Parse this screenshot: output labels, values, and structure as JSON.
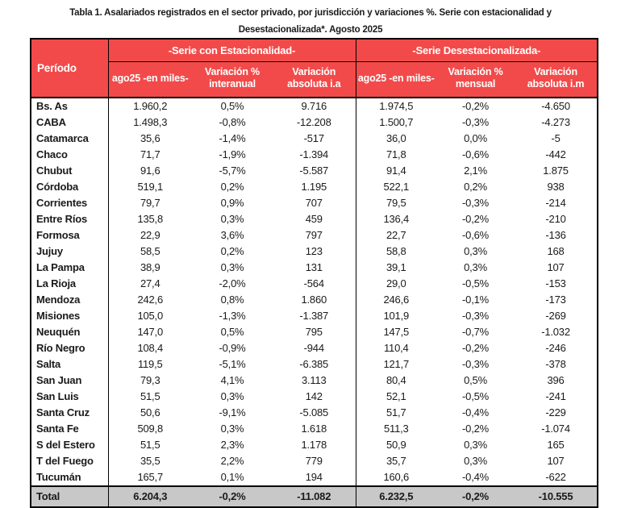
{
  "title": {
    "line1": "Tabla 1. Asalariados registrados en el sector privado, por jurisdicción y variaciones %. Serie con estacionalidad y",
    "line2": "Desestacionalizada*. Agosto 2025"
  },
  "colors": {
    "header_red": "#f24a4a",
    "header_text": "#ffffff",
    "total_gray": "#c8c8c8",
    "border_black": "#000000"
  },
  "table": {
    "period_header": "Período",
    "group_headers": {
      "seasonal": "-Serie con Estacionalidad-",
      "deseasonalized": "-Serie Desestacionalizada-"
    },
    "subheaders": [
      "ago25 -en miles-",
      "Variación % interanual",
      "Variación absoluta i.a",
      "ago25 -en miles-",
      "Variación % mensual",
      "Variación absoluta i.m"
    ],
    "rows": [
      [
        "Bs. As",
        "1.960,2",
        "0,5%",
        "9.716",
        "1.974,5",
        "-0,2%",
        "-4.650"
      ],
      [
        "CABA",
        "1.498,3",
        "-0,8%",
        "-12.208",
        "1.500,7",
        "-0,3%",
        "-4.273"
      ],
      [
        "Catamarca",
        "35,6",
        "-1,4%",
        "-517",
        "36,0",
        "0,0%",
        "-5"
      ],
      [
        "Chaco",
        "71,7",
        "-1,9%",
        "-1.394",
        "71,8",
        "-0,6%",
        "-442"
      ],
      [
        "Chubut",
        "91,6",
        "-5,7%",
        "-5.587",
        "91,4",
        "2,1%",
        "1.875"
      ],
      [
        "Córdoba",
        "519,1",
        "0,2%",
        "1.195",
        "522,1",
        "0,2%",
        "938"
      ],
      [
        "Corrientes",
        "79,7",
        "0,9%",
        "707",
        "79,5",
        "-0,3%",
        "-214"
      ],
      [
        "Entre Ríos",
        "135,8",
        "0,3%",
        "459",
        "136,4",
        "-0,2%",
        "-210"
      ],
      [
        "Formosa",
        "22,9",
        "3,6%",
        "797",
        "22,7",
        "-0,6%",
        "-136"
      ],
      [
        "Jujuy",
        "58,5",
        "0,2%",
        "123",
        "58,8",
        "0,3%",
        "168"
      ],
      [
        "La Pampa",
        "38,9",
        "0,3%",
        "131",
        "39,1",
        "0,3%",
        "107"
      ],
      [
        "La Rioja",
        "27,4",
        "-2,0%",
        "-564",
        "29,0",
        "-0,5%",
        "-153"
      ],
      [
        "Mendoza",
        "242,6",
        "0,8%",
        "1.860",
        "246,6",
        "-0,1%",
        "-173"
      ],
      [
        "Misiones",
        "105,0",
        "-1,3%",
        "-1.387",
        "101,9",
        "-0,3%",
        "-269"
      ],
      [
        "Neuquén",
        "147,0",
        "0,5%",
        "795",
        "147,5",
        "-0,7%",
        "-1.032"
      ],
      [
        "Río Negro",
        "108,4",
        "-0,9%",
        "-944",
        "110,4",
        "-0,2%",
        "-246"
      ],
      [
        "Salta",
        "119,5",
        "-5,1%",
        "-6.385",
        "121,7",
        "-0,3%",
        "-378"
      ],
      [
        "San Juan",
        "79,3",
        "4,1%",
        "3.113",
        "80,4",
        "0,5%",
        "396"
      ],
      [
        "San Luis",
        "51,5",
        "0,3%",
        "142",
        "52,1",
        "-0,5%",
        "-241"
      ],
      [
        "Santa Cruz",
        "50,6",
        "-9,1%",
        "-5.085",
        "51,7",
        "-0,4%",
        "-229"
      ],
      [
        "Santa Fe",
        "509,8",
        "0,3%",
        "1.618",
        "511,3",
        "-0,2%",
        "-1.074"
      ],
      [
        "S del Estero",
        "51,5",
        "2,3%",
        "1.178",
        "50,9",
        "0,3%",
        "165"
      ],
      [
        "T del Fuego",
        "35,5",
        "2,2%",
        "779",
        "35,7",
        "0,3%",
        "107"
      ],
      [
        "Tucumán",
        "165,7",
        "0,1%",
        "194",
        "160,6",
        "-0,4%",
        "-622"
      ]
    ],
    "total": [
      "Total",
      "6.204,3",
      "-0,2%",
      "-11.082",
      "6.232,5",
      "-0,2%",
      "-10.555"
    ]
  }
}
